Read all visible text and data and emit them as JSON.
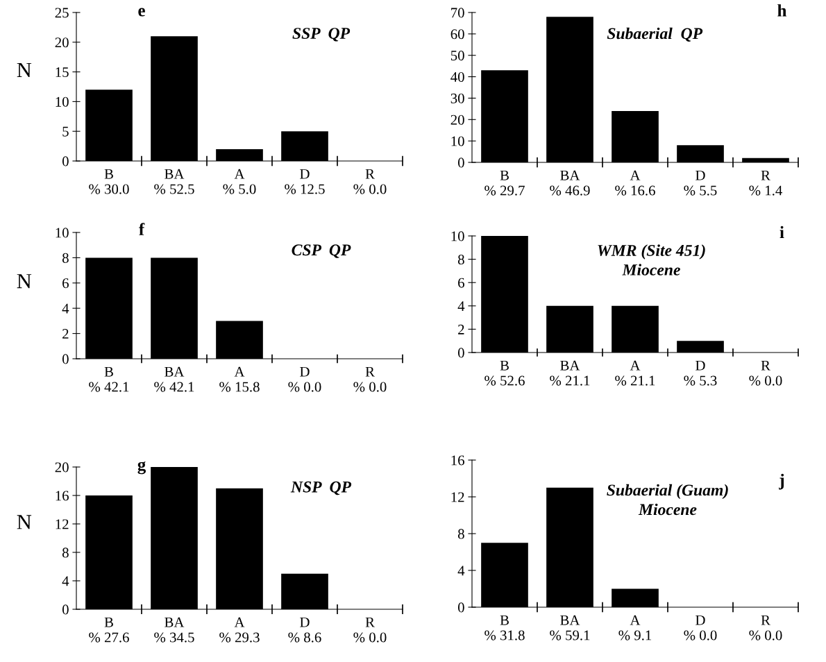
{
  "chart_data": [
    {
      "type": "bar",
      "title": "SSP  QP",
      "annotations": [
        "e"
      ],
      "ylabel": "N",
      "categories": [
        "B\n% 30.0",
        "BA\n% 52.5",
        "A\n% 5.0",
        "D\n% 12.5",
        "R\n% 0.0"
      ],
      "values": [
        12,
        21,
        2,
        5,
        0
      ],
      "color": "#000000",
      "ylim": [
        0,
        25
      ],
      "yticks": [
        0,
        5,
        10,
        15,
        20,
        25
      ],
      "grid": false
    },
    {
      "type": "bar",
      "title": "Subaerial  QP",
      "annotations": [
        "h"
      ],
      "categories": [
        "B\n% 29.7",
        "BA\n% 46.9",
        "A\n% 16.6",
        "D\n% 5.5",
        "R\n% 1.4"
      ],
      "values": [
        43,
        68,
        24,
        8,
        2
      ],
      "color": "#000000",
      "ylim": [
        0,
        70
      ],
      "yticks": [
        0,
        10,
        20,
        30,
        40,
        50,
        60,
        70
      ],
      "grid": false
    },
    {
      "type": "bar",
      "title": "CSP  QP",
      "annotations": [
        "f"
      ],
      "ylabel": "N",
      "categories": [
        "B\n% 42.1",
        "BA\n% 42.1",
        "A\n% 15.8",
        "D\n% 0.0",
        "R\n% 0.0"
      ],
      "values": [
        8,
        8,
        3,
        0,
        0
      ],
      "color": "#000000",
      "ylim": [
        0,
        10
      ],
      "yticks": [
        0,
        2,
        4,
        6,
        8,
        10
      ],
      "grid": false
    },
    {
      "type": "bar",
      "title": "WMR (Site 451)\nMiocene",
      "annotations": [
        "i"
      ],
      "categories": [
        "B\n% 52.6",
        "BA\n% 21.1",
        "A\n% 21.1",
        "D\n% 5.3",
        "R\n% 0.0"
      ],
      "values": [
        10,
        4,
        4,
        1,
        0
      ],
      "color": "#000000",
      "ylim": [
        0,
        10
      ],
      "yticks": [
        0,
        2,
        4,
        6,
        8,
        10
      ],
      "grid": false
    },
    {
      "type": "bar",
      "title": "NSP  QP",
      "annotations": [
        "g"
      ],
      "ylabel": "N",
      "categories": [
        "B\n% 27.6",
        "BA\n% 34.5",
        "A\n% 29.3",
        "D\n% 8.6",
        "R\n% 0.0"
      ],
      "values": [
        16,
        20,
        17,
        5,
        0
      ],
      "color": "#000000",
      "ylim": [
        0,
        20
      ],
      "yticks": [
        0,
        4,
        8,
        12,
        16,
        20
      ],
      "grid": false
    },
    {
      "type": "bar",
      "title": "Subaerial (Guam)\nMiocene",
      "annotations": [
        "j"
      ],
      "categories": [
        "B\n% 31.8",
        "BA\n% 59.1",
        "A\n% 9.1",
        "D\n% 0.0",
        "R\n% 0.0"
      ],
      "values": [
        7,
        13,
        2,
        0,
        0
      ],
      "color": "#000000",
      "ylim": [
        0,
        16
      ],
      "yticks": [
        0,
        4,
        8,
        12,
        16
      ],
      "grid": false
    }
  ]
}
